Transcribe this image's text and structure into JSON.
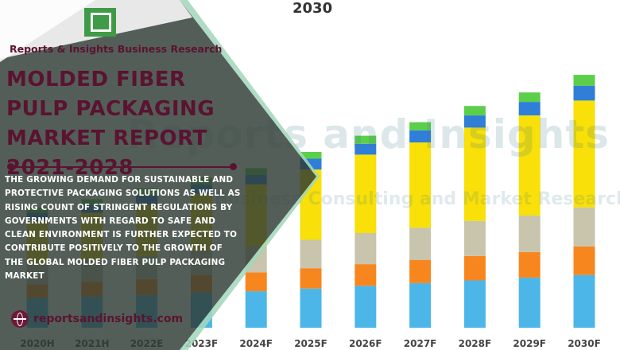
{
  "brand": {
    "name": "Reports & Insights Business Research",
    "url": "reportsandinsights.com"
  },
  "report": {
    "title": "MOLDED FIBER PULP PACKAGING MARKET REPORT 2021-2028",
    "description": "THE GROWING DEMAND FOR SUSTAINABLE AND PROTECTIVE PACKAGING SOLUTIONS AS WELL AS RISING COUNT OF STRINGENT REGULATIONS BY GOVERNMENTS WITH REGARD TO SAFE AND CLEAN ENVIRONMENT IS FURTHER EXPECTED TO CONTRIBUTE POSITIVELY TO THE GROWTH OF THE GLOBAL MOLDED FIBER PULP PACKAGING MARKET"
  },
  "watermark": {
    "main": "Reports and Insights",
    "sub": "Business Consulting and Market Research"
  },
  "colors": {
    "series": [
      "#4db6e8",
      "#f7861f",
      "#c9c4ac",
      "#f8e008",
      "#2f7fd8",
      "#5ccf4a"
    ],
    "overlay": "#3d4a3f",
    "brand": "#5a1330",
    "logo": "#3f9b47"
  },
  "chart_data": {
    "type": "bar",
    "stacked": true,
    "title": "2030",
    "categories": [
      "2020H",
      "2021H",
      "2022E",
      "2023F",
      "2024F",
      "2025F",
      "2026F",
      "2027F",
      "2028F",
      "2029F",
      "2030F"
    ],
    "series": [
      {
        "values": [
          22,
          23,
          24,
          26,
          27,
          29,
          31,
          33,
          35,
          37,
          39
        ]
      },
      {
        "values": [
          10,
          11,
          12,
          13,
          14,
          15,
          16,
          17,
          18,
          19,
          21
        ]
      },
      {
        "values": [
          15,
          16,
          17,
          18,
          19,
          21,
          23,
          24,
          26,
          27,
          29
        ]
      },
      {
        "values": [
          32,
          35,
          38,
          42,
          46,
          52,
          58,
          63,
          69,
          74,
          79
        ]
      },
      {
        "values": [
          6,
          6,
          7,
          7,
          7,
          8,
          8,
          9,
          9,
          10,
          11
        ]
      },
      {
        "values": [
          4,
          4,
          5,
          5,
          5,
          5,
          6,
          6,
          7,
          7,
          8
        ]
      }
    ],
    "ylim": [
      0,
      200
    ],
    "grid": false,
    "legend": "none"
  }
}
